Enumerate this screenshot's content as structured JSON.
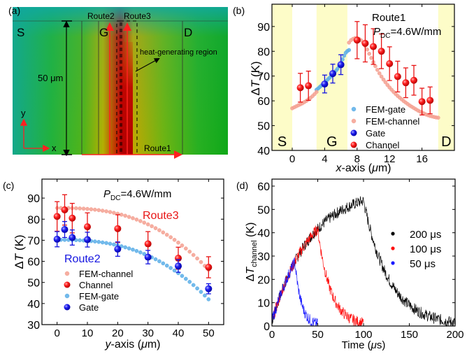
{
  "panel_a": {
    "label": "(a)",
    "source_label": "S",
    "gate_label": "G",
    "drain_label": "D",
    "route1_label": "Route1",
    "route2_label": "Route2",
    "route3_label": "Route3",
    "scale_label": "50 μm",
    "heat_label": "heat-generating region",
    "x_axis_label": "x",
    "y_axis_label": "y",
    "colors": {
      "cool": "#10a890",
      "mid": "#20b020",
      "warm": "#c8b000",
      "hot": "#c00000",
      "arrow": "#ff2020"
    }
  },
  "chart_data": [
    {
      "id": "b",
      "type": "scatter",
      "panel_label": "(b)",
      "title": "Route1",
      "annotation": {
        "P": "P",
        "sub": "DC",
        "rest": "=4.6W/mm"
      },
      "xlabel": "x-axis (μm)",
      "ylabel": "ΔT (K)",
      "xlim": [
        -2.5,
        20
      ],
      "ylim": [
        40,
        99
      ],
      "xticks": [
        0,
        4,
        8,
        12,
        16
      ],
      "yticks": [
        40,
        50,
        60,
        70,
        80,
        90
      ],
      "regions": [
        {
          "label": "S",
          "x0": -2.5,
          "x1": 0
        },
        {
          "label": "G",
          "x0": 3,
          "x1": 6.8
        },
        {
          "label": "D",
          "x0": 18,
          "x1": 20
        }
      ],
      "series": [
        {
          "name": "FEM-gate",
          "kind": "fem",
          "color": "#5aaee8",
          "x": [
            3.0,
            3.2,
            3.4,
            3.6,
            3.8,
            4.0,
            4.2,
            4.4,
            4.6,
            4.8,
            5.0,
            5.2,
            5.4,
            5.6,
            5.8,
            6.0,
            6.2,
            6.4,
            6.6,
            6.8,
            7.0
          ],
          "y": [
            64.5,
            65.0,
            65.6,
            66.2,
            66.8,
            67.4,
            68.0,
            68.7,
            69.3,
            70.0,
            70.7,
            71.4,
            72.2,
            73.0,
            74.0,
            75.2,
            76.7,
            78.2,
            79.4,
            80.1,
            80.5
          ]
        },
        {
          "name": "FEM-channel",
          "kind": "fem",
          "color": "#f4a090",
          "x": [
            0,
            0.25,
            0.5,
            0.75,
            1,
            1.25,
            1.5,
            1.75,
            2,
            2.25,
            2.5,
            2.75,
            3,
            7.0,
            7.25,
            7.5,
            7.75,
            8,
            8.25,
            8.5,
            8.75,
            9,
            9.25,
            9.5,
            9.75,
            10,
            10.25,
            10.5,
            10.75,
            11,
            11.25,
            11.5,
            11.75,
            12,
            12.25,
            12.5,
            12.75,
            13,
            13.25,
            13.5,
            13.75,
            14,
            14.25,
            14.5,
            14.75,
            15,
            15.25,
            15.5,
            15.75,
            16,
            16.25,
            16.5,
            16.75,
            17,
            17.25,
            17.5,
            17.75,
            18
          ],
          "y": [
            57.0,
            57.4,
            57.8,
            58.2,
            58.6,
            59.0,
            59.5,
            60.0,
            60.6,
            61.2,
            61.9,
            62.7,
            63.6,
            83.5,
            84.5,
            85.0,
            85.3,
            85.3,
            85.0,
            84.4,
            83.5,
            82.2,
            80.7,
            79.0,
            77.3,
            75.6,
            74.0,
            72.5,
            71.1,
            69.8,
            68.6,
            67.5,
            66.4,
            65.4,
            64.5,
            63.6,
            62.8,
            62.0,
            61.3,
            60.6,
            59.9,
            59.3,
            58.7,
            58.1,
            57.6,
            57.1,
            56.6,
            56.1,
            55.7,
            55.3,
            54.9,
            54.5,
            54.2,
            53.9,
            53.7,
            53.5,
            53.3,
            53.2
          ]
        },
        {
          "name": "Gate",
          "kind": "data",
          "color": "#1414e0",
          "x": [
            4,
            5,
            6
          ],
          "y": [
            66.8,
            71.0,
            74.6
          ],
          "err": [
            3.6,
            3.8,
            4.0
          ]
        },
        {
          "name": "Channel",
          "kind": "data",
          "color": "#e81414",
          "x": [
            1,
            2,
            8,
            9,
            10,
            11,
            12,
            13,
            14,
            15,
            16,
            17
          ],
          "y": [
            65.3,
            66.1,
            84.5,
            83.2,
            81.9,
            80.0,
            75.0,
            69.8,
            67.3,
            68.3,
            59.7,
            60.2
          ],
          "err": [
            5.8,
            5.9,
            7.5,
            7.5,
            7.2,
            7.0,
            6.8,
            6.2,
            6.0,
            6.0,
            5.4,
            5.4
          ]
        }
      ],
      "legend": [
        "FEM-gate",
        "FEM-channel",
        "Gate",
        "Channel"
      ],
      "legend_position": "bottom-right"
    },
    {
      "id": "c",
      "type": "scatter",
      "panel_label": "(c)",
      "annotation": {
        "P": "P",
        "sub": "DC",
        "rest": "=4.6W/mm"
      },
      "route3_label": "Route3",
      "route2_label": "Route2",
      "xlabel": "y-axis (μm)",
      "ylabel": "ΔT (K)",
      "xlim": [
        -5,
        55
      ],
      "ylim": [
        30,
        99
      ],
      "xticks": [
        0,
        10,
        20,
        30,
        40,
        50
      ],
      "yticks": [
        30,
        40,
        50,
        60,
        70,
        80,
        90
      ],
      "series": [
        {
          "name": "FEM-channel",
          "kind": "fem",
          "color": "#f4a090",
          "y0": 85.3,
          "drop": 29.3,
          "power": 2.6
        },
        {
          "name": "Channel",
          "kind": "data",
          "color": "#e81414",
          "x": [
            0,
            2.5,
            5,
            10,
            20,
            30,
            40,
            50
          ],
          "y": [
            81.3,
            84.4,
            80.5,
            76.4,
            75.5,
            68.3,
            61.5,
            57.2
          ],
          "err": [
            7.0,
            7.2,
            7.0,
            6.6,
            6.6,
            5.8,
            5.2,
            5.0
          ]
        },
        {
          "name": "FEM-gate",
          "kind": "fem",
          "color": "#5aaee8",
          "y0": 70.2,
          "drop": 28.2,
          "power": 2.6
        },
        {
          "name": "Gate",
          "kind": "data",
          "color": "#1414e0",
          "x": [
            0,
            2.5,
            5,
            10,
            20,
            30,
            40,
            50
          ],
          "y": [
            70.5,
            75.1,
            71.3,
            70.3,
            65.8,
            62.0,
            57.8,
            47.0
          ],
          "err": [
            3.6,
            3.8,
            3.6,
            3.5,
            3.4,
            3.2,
            3.0,
            2.4
          ]
        }
      ],
      "legend": [
        "FEM-channel",
        "Channel",
        "FEM-gate",
        "Gate"
      ],
      "legend_position": "bottom-left"
    },
    {
      "id": "d",
      "type": "line",
      "panel_label": "(d)",
      "xlabel": "Time (μs)",
      "ylabel_main": "ΔT",
      "ylabel_sub": "channel",
      "ylabel_unit": "(K)",
      "xlim": [
        0,
        200
      ],
      "ylim": [
        0,
        63
      ],
      "xticks": [
        0,
        50,
        100,
        150,
        200
      ],
      "yticks": [
        0,
        10,
        20,
        30,
        40,
        50,
        60
      ],
      "series": [
        {
          "name": "200 μs",
          "color": "#000000",
          "pulse_end": 100,
          "end": 200,
          "peak": 54
        },
        {
          "name": "100 μs",
          "color": "#ff1010",
          "pulse_end": 50,
          "end": 100,
          "peak": 45
        },
        {
          "name": "50 μs",
          "color": "#1a1aff",
          "pulse_end": 25,
          "end": 50,
          "peak": 35
        }
      ],
      "legend": [
        "200 μs",
        "100 μs",
        "50 μs"
      ],
      "legend_position": "center-right"
    }
  ]
}
